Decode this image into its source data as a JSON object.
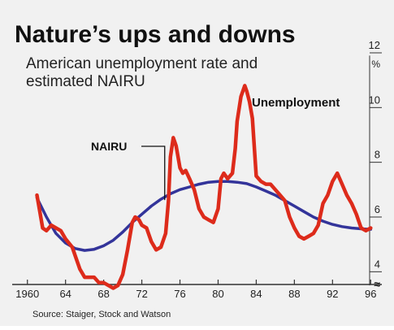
{
  "chart_data": {
    "type": "line",
    "title": "Nature’s ups and downs",
    "subtitle_lines": [
      "American unemployment rate and",
      "estimated NAIRU"
    ],
    "source": "Source: Staiger, Stock and Watson",
    "y_unit": "%",
    "y_ticks": [
      12,
      10,
      8,
      6,
      4
    ],
    "y_break_marker": "≈",
    "ylim": [
      3,
      12
    ],
    "x_ticks": [
      1960,
      1964,
      1968,
      1972,
      1976,
      1980,
      1984,
      1988,
      1992,
      1996
    ],
    "x_tick_labels": [
      "1960",
      "64",
      "68",
      "72",
      "76",
      "80",
      "84",
      "88",
      "92",
      "96"
    ],
    "xlim": [
      1959,
      1997
    ],
    "grid": false,
    "colors": {
      "unemployment": "#dd2b1b",
      "nairu": "#33349a",
      "axis": "#333333"
    },
    "series": [
      {
        "name": "Unemployment",
        "x": [
          1961,
          1961.3,
          1961.6,
          1962,
          1962.5,
          1963,
          1963.5,
          1964,
          1964.7,
          1965,
          1965.5,
          1966,
          1966.5,
          1967,
          1967.5,
          1968,
          1968.5,
          1969,
          1969.5,
          1970,
          1970.5,
          1971,
          1971.3,
          1971.7,
          1972,
          1972.5,
          1973,
          1973.5,
          1974,
          1974.5,
          1974.8,
          1975,
          1975.3,
          1975.6,
          1976,
          1976.3,
          1976.6,
          1977,
          1977.5,
          1978,
          1978.5,
          1979,
          1979.5,
          1980,
          1980.3,
          1980.6,
          1981,
          1981.5,
          1981.8,
          1982,
          1982.4,
          1982.8,
          1983,
          1983.3,
          1983.6,
          1984,
          1984.5,
          1985,
          1985.5,
          1986,
          1986.5,
          1987,
          1987.5,
          1988,
          1988.5,
          1989,
          1989.5,
          1990,
          1990.5,
          1991,
          1991.5,
          1992,
          1992.5,
          1993,
          1993.5,
          1994,
          1994.5,
          1995,
          1995.5,
          1996
        ],
        "y": [
          6.8,
          6.2,
          5.6,
          5.5,
          5.7,
          5.6,
          5.5,
          5.2,
          4.9,
          4.6,
          4.1,
          3.8,
          3.8,
          3.8,
          3.6,
          3.6,
          3.5,
          3.4,
          3.5,
          3.9,
          4.8,
          5.8,
          6.0,
          5.9,
          5.7,
          5.6,
          5.1,
          4.8,
          4.9,
          5.4,
          6.6,
          8.2,
          8.9,
          8.6,
          7.8,
          7.6,
          7.7,
          7.4,
          7.0,
          6.3,
          6.0,
          5.9,
          5.8,
          6.3,
          7.4,
          7.6,
          7.4,
          7.6,
          8.5,
          9.5,
          10.4,
          10.8,
          10.6,
          10.2,
          9.6,
          7.5,
          7.3,
          7.2,
          7.2,
          7.0,
          6.8,
          6.6,
          6.0,
          5.6,
          5.3,
          5.2,
          5.3,
          5.4,
          5.7,
          6.5,
          6.8,
          7.3,
          7.6,
          7.2,
          6.8,
          6.5,
          6.1,
          5.6,
          5.5,
          5.6
        ]
      },
      {
        "name": "NAIRU",
        "x": [
          1961,
          1962,
          1963,
          1964,
          1965,
          1966,
          1967,
          1968,
          1969,
          1970,
          1971,
          1972,
          1973,
          1974,
          1975,
          1976,
          1977,
          1978,
          1979,
          1980,
          1981,
          1982,
          1983,
          1984,
          1985,
          1986,
          1987,
          1988,
          1989,
          1990,
          1991,
          1992,
          1993,
          1994,
          1995,
          1996
        ],
        "y": [
          6.7,
          6.0,
          5.4,
          5.05,
          4.85,
          4.78,
          4.82,
          4.95,
          5.15,
          5.45,
          5.8,
          6.1,
          6.4,
          6.65,
          6.85,
          7.0,
          7.1,
          7.2,
          7.27,
          7.3,
          7.3,
          7.27,
          7.22,
          7.1,
          6.95,
          6.8,
          6.6,
          6.4,
          6.2,
          6.0,
          5.85,
          5.73,
          5.65,
          5.6,
          5.57,
          5.55
        ]
      }
    ],
    "annotations": [
      {
        "text": "Unemployment",
        "series": "Unemployment"
      },
      {
        "text": "NAIRU",
        "series": "NAIRU"
      }
    ]
  }
}
